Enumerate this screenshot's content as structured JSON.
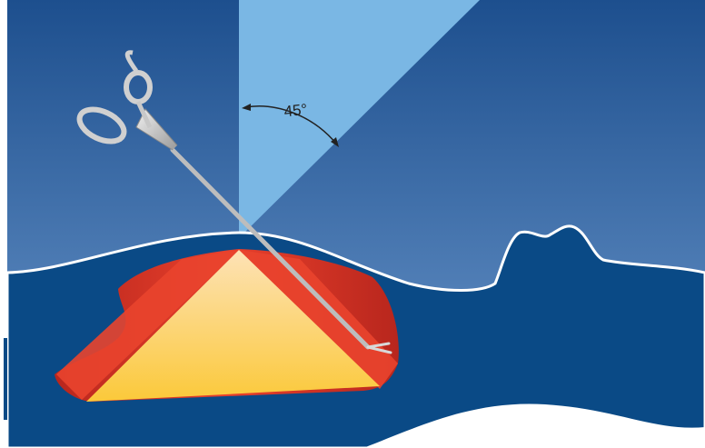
{
  "angle_label": "45°"
}
